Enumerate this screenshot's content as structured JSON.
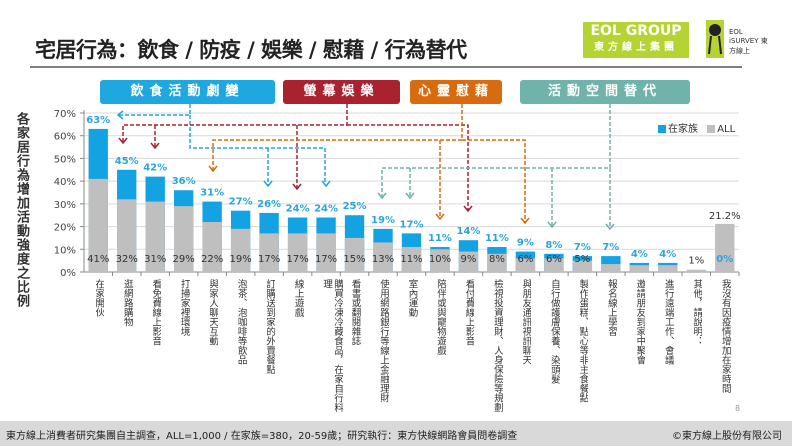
{
  "title": "宅居行為：飲食 / 防疫 / 娛樂 / 慰藉 / 行為替代",
  "logos": {
    "group_line1": "EOL GROUP",
    "group_line2": "東方線上集團",
    "survey": "EOL iSURVEY 東方線上"
  },
  "banners": [
    {
      "label": "飲食活動劇變",
      "color": "#1fa8e0"
    },
    {
      "label": "螢幕娛樂",
      "color": "#a8232f"
    },
    {
      "label": "心靈慰藉",
      "color": "#d86b10"
    },
    {
      "label": "活動空間替代",
      "color": "#6fb3ab"
    }
  ],
  "colors": {
    "home": "#13a3e2",
    "all": "#bfbfbf",
    "label_home": "#2ba5dc",
    "label_all": "#333333"
  },
  "chart_data": {
    "type": "bar",
    "stacked_overlay": true,
    "ylabel": "各家居行為增加活動強度之比例",
    "ylim": [
      0,
      70
    ],
    "yticks": [
      "0%",
      "10%",
      "20%",
      "30%",
      "40%",
      "50%",
      "60%",
      "70%"
    ],
    "grid": true,
    "legend": {
      "placement": "top-right",
      "entries": [
        "在家族",
        "ALL"
      ]
    },
    "categories": [
      "在家開伙",
      "逛網路購物",
      "看免費線上影音",
      "打掃家裡環境",
      "與家人聊天互動",
      "泡茶、泡咖啡等飲品",
      "訂購送到家的外賣餐點",
      "線上遊戲",
      "購買冷凍冷藏食品，在家自行料理",
      "看書或翻閱雜誌",
      "使用網路銀行等線上金融理財",
      "室內運動",
      "陪伴或與寵物遊戲",
      "看付費線上影音",
      "檢視投資理財、人身保險等規劃",
      "與朋友通訊視訊聊天",
      "自行做護膚保養、染頭髮",
      "製作蛋糕、點心等非主食餐點",
      "報名線上學習",
      "邀請朋友到家中聚會",
      "進行遠端工作、會議",
      "其他，請說明：",
      "我沒有因疫情增加在家時間"
    ],
    "series": [
      {
        "name": "在家族",
        "values": [
          63,
          45,
          42,
          36,
          31,
          27,
          26,
          24,
          24,
          25,
          19,
          17,
          11,
          14,
          11,
          9,
          8,
          7,
          7,
          4,
          4,
          null,
          0
        ],
        "labels": [
          "63%",
          "45%",
          "42%",
          "36%",
          "31%",
          "27%",
          "26%",
          "24%",
          "24%",
          "25%",
          "19%",
          "17%",
          "11%",
          "14%",
          "11%",
          "9%",
          "8%",
          "7%",
          "7%",
          "4%",
          "4%",
          "",
          "0%"
        ]
      },
      {
        "name": "ALL",
        "values": [
          41,
          32,
          31,
          29,
          22,
          19,
          17,
          17,
          17,
          15,
          13,
          11,
          10,
          9,
          8,
          6,
          6,
          5,
          3.5,
          3,
          3,
          1,
          21.2
        ],
        "labels": [
          "41%",
          "32%",
          "31%",
          "29%",
          "22%",
          "19%",
          "17%",
          "17%",
          "17%",
          "15%",
          "13%",
          "11%",
          "10%",
          "9%",
          "8%",
          "6%",
          "6%",
          "5%",
          "",
          "",
          "",
          "1%",
          "21.2%"
        ]
      }
    ]
  },
  "footer": {
    "source": "東方線上消費者研究集團自主調查，ALL=1,000 / 在家族=380，20-59歲；研究執行：東方快線網路會員問卷調查",
    "copyright": "©東方線上股份有限公司",
    "page": "8"
  }
}
